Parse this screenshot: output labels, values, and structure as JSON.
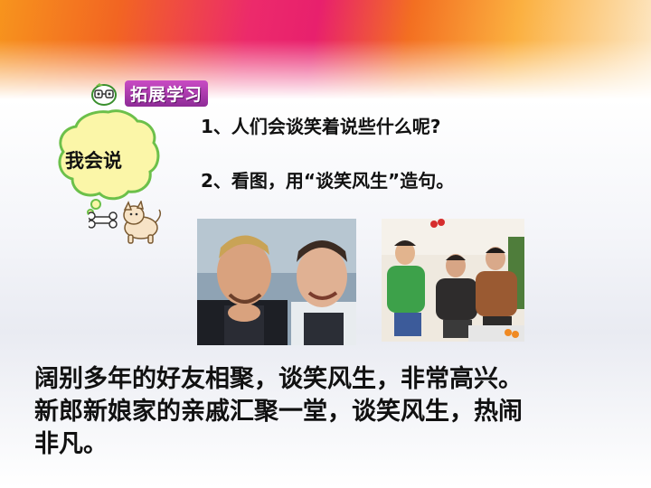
{
  "tag": {
    "label": "拓展学习"
  },
  "bubble": {
    "label": "我会说"
  },
  "questions": [
    "1、人们会谈笑着说些什么呢?",
    "2、看图，用“谈笑风生”造句。"
  ],
  "photos": [
    {
      "name": "two-men-laughing-photo"
    },
    {
      "name": "family-gathering-photo"
    }
  ],
  "answer_lines": [
    "阔别多年的好友相聚，谈笑风生，非常高兴。",
    "新郎新娘家的亲戚汇聚一堂，谈笑风生，热闹",
    "非凡。"
  ],
  "colors": {
    "tag_purple": "#8e2b97",
    "bubble_fill": "#fbf6a8",
    "bubble_stroke": "#6cc04a",
    "banner_orange": "#f26522",
    "banner_pink": "#ec2a6b"
  }
}
